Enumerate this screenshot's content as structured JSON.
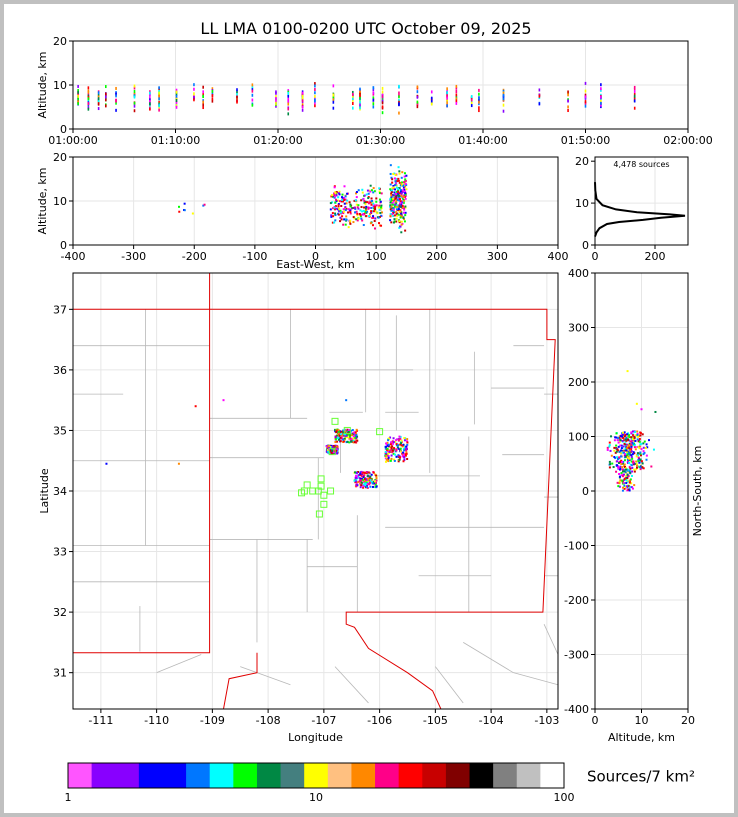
{
  "title": "LL LMA 0100-0200 UTC October 09, 2025",
  "colors": {
    "grid": "#e6e6e6",
    "county": "#b8b8b8",
    "state": "#e00000",
    "station": "#66ff33"
  },
  "chart_data": [
    {
      "panel": "time-altitude",
      "type": "scatter",
      "ylabel": "Altitude, km",
      "xlabel": "",
      "ylim": [
        0,
        20
      ],
      "yticks": [
        "0",
        "10",
        "20"
      ],
      "xticks": [
        "01:00:00",
        "01:10:00",
        "01:20:00",
        "01:30:00",
        "01:40:00",
        "01:50:00",
        "02:00:00"
      ],
      "xlim_minutes": [
        0,
        60
      ],
      "source_minutes": [
        0.5,
        1.5,
        2.5,
        3.2,
        4.2,
        6.0,
        7.5,
        8.4,
        10.1,
        11.8,
        12.7,
        13.6,
        16.0,
        17.5,
        19.8,
        21.0,
        22.4,
        23.6,
        25.4,
        27.3,
        28.0,
        29.3,
        30.2,
        31.8,
        33.6,
        35.0,
        36.5,
        37.4,
        38.9,
        39.6,
        42.0,
        45.5,
        48.3,
        50.0,
        51.5,
        54.8
      ]
    },
    {
      "panel": "east-west-altitude",
      "type": "scatter",
      "xlabel": "East-West, km",
      "ylabel": "Altitude, km",
      "xlim": [
        -400,
        400
      ],
      "ylim": [
        0,
        20
      ],
      "xticks": [
        "-400",
        "-300",
        "-200",
        "-100",
        "0",
        "100",
        "200",
        "300",
        "400"
      ],
      "yticks": [
        "0",
        "10",
        "20"
      ],
      "clusters": [
        {
          "x_min": 25,
          "x_max": 110,
          "z_min": 2,
          "z_max": 15
        },
        {
          "x_min": 123,
          "x_max": 150,
          "z_min": 2,
          "z_max": 19
        },
        {
          "x_min": -230,
          "x_max": -180,
          "z_min": 6,
          "z_max": 11
        }
      ]
    },
    {
      "panel": "altitude-histogram",
      "type": "line",
      "annotation": "4,478 sources",
      "xlim": [
        0,
        310
      ],
      "ylim": [
        0,
        21
      ],
      "xticks": [
        "0",
        "200"
      ],
      "yticks": [
        "0",
        "10",
        "20"
      ],
      "profile": [
        [
          0,
          2
        ],
        [
          5,
          3
        ],
        [
          15,
          4
        ],
        [
          40,
          5
        ],
        [
          80,
          5.5
        ],
        [
          160,
          6
        ],
        [
          220,
          6.5
        ],
        [
          300,
          7
        ],
        [
          250,
          7.3
        ],
        [
          140,
          7.8
        ],
        [
          70,
          8.5
        ],
        [
          25,
          9.5
        ],
        [
          5,
          11
        ],
        [
          1,
          13
        ],
        [
          0,
          15
        ]
      ]
    },
    {
      "panel": "plan-view-map",
      "type": "scatter",
      "xlabel": "Longitude",
      "ylabel": "Latitude",
      "xlim": [
        -111.5,
        -102.8
      ],
      "ylim": [
        30.4,
        37.6
      ],
      "xticks": [
        "-111",
        "-110",
        "-109",
        "-108",
        "-107",
        "-106",
        "-105",
        "-104",
        "-103"
      ],
      "yticks": [
        "31",
        "32",
        "33",
        "34",
        "35",
        "36",
        "37"
      ],
      "stations": [
        [
          -107.3,
          34.1
        ],
        [
          -107.35,
          34.0
        ],
        [
          -107.4,
          33.97
        ],
        [
          -107.2,
          34.0
        ],
        [
          -107.1,
          34.0
        ],
        [
          -107.05,
          34.2
        ],
        [
          -107.05,
          34.08
        ],
        [
          -107.0,
          33.93
        ],
        [
          -107.0,
          33.78
        ],
        [
          -107.08,
          33.62
        ],
        [
          -106.88,
          34.0
        ],
        [
          -106.8,
          35.15
        ],
        [
          -106.58,
          35.0
        ],
        [
          -106.0,
          34.98
        ],
        [
          -106.85,
          34.65
        ]
      ],
      "clusters": [
        {
          "lon_min": -106.8,
          "lon_max": -106.4,
          "lat_min": 34.8,
          "lat_max": 35.02
        },
        {
          "lon_min": -105.9,
          "lon_max": -105.5,
          "lat_min": 34.48,
          "lat_max": 34.9
        },
        {
          "lon_min": -106.45,
          "lon_max": -106.05,
          "lat_min": 34.05,
          "lat_max": 34.32
        },
        {
          "lon_min": -106.95,
          "lon_max": -106.75,
          "lat_min": 34.62,
          "lat_max": 34.75
        }
      ]
    },
    {
      "panel": "altitude-north-south",
      "type": "scatter",
      "xlabel": "Altitude, km",
      "ylabel": "North-South, km",
      "xlim": [
        0,
        20
      ],
      "ylim": [
        -400,
        400
      ],
      "xticks": [
        "0",
        "10",
        "20"
      ],
      "yticks": [
        "-400",
        "-300",
        "-200",
        "-100",
        "0",
        "100",
        "200",
        "300",
        "400"
      ],
      "clusters": [
        {
          "z_min": 1.5,
          "z_max": 13,
          "y_min": 40,
          "y_max": 110
        },
        {
          "z_min": 4,
          "z_max": 9,
          "y_min": 0,
          "y_max": 40
        }
      ]
    },
    {
      "panel": "colorbar",
      "type": "heatmap",
      "label": "Sources/7 km²",
      "scale": "log",
      "ticks": [
        "1",
        "10",
        "100"
      ],
      "colors": [
        "#ff55ff",
        "#8800ff",
        "#8800ff",
        "#0000ff",
        "#0000ff",
        "#0077ff",
        "#00ffff",
        "#00ff00",
        "#008844",
        "#447f7f",
        "#ffff00",
        "#ffc080",
        "#ff8800",
        "#ff0088",
        "#ff0000",
        "#c80000",
        "#800000",
        "#000000",
        "#808080",
        "#c0c0c0",
        "#ffffff"
      ]
    }
  ]
}
